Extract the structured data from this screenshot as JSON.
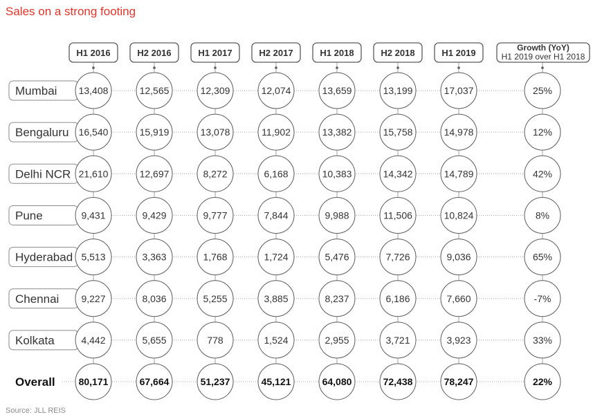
{
  "colors": {
    "title": "#e3342b",
    "text": "#333333",
    "stroke": "#5a5a5a",
    "stroke_light": "#8a8a8a",
    "line": "#a0a0a0",
    "muted": "#8c8c8c"
  },
  "chart_data": {
    "type": "table",
    "title": "Sales on a strong footing",
    "source": "Source: JLL REIS",
    "columns": [
      "H1 2016",
      "H2 2016",
      "H1 2017",
      "H2 2017",
      "H1 2018",
      "H2 2018",
      "H1 2019"
    ],
    "growth_column": {
      "label": "Growth (YoY)",
      "sublabel": "H1 2019 over H1 2018"
    },
    "rows": [
      {
        "label": "Mumbai",
        "values": [
          13408,
          12565,
          12309,
          12074,
          13659,
          13199,
          17037
        ],
        "growth_pct": 25
      },
      {
        "label": "Bengaluru",
        "values": [
          16540,
          15919,
          13078,
          11902,
          13382,
          15758,
          14978
        ],
        "growth_pct": 12
      },
      {
        "label": "Delhi NCR",
        "values": [
          21610,
          12697,
          8272,
          6168,
          10383,
          14342,
          14789
        ],
        "growth_pct": 42
      },
      {
        "label": "Pune",
        "values": [
          9431,
          9429,
          9777,
          7844,
          9988,
          11506,
          10824
        ],
        "growth_pct": 8
      },
      {
        "label": "Hyderabad",
        "values": [
          5513,
          3363,
          1768,
          1724,
          5476,
          7726,
          9036
        ],
        "growth_pct": 65
      },
      {
        "label": "Chennai",
        "values": [
          9227,
          8036,
          5255,
          3885,
          8237,
          6186,
          7660
        ],
        "growth_pct": -7
      },
      {
        "label": "Kolkata",
        "values": [
          4442,
          5655,
          778,
          1524,
          2955,
          3721,
          3923
        ],
        "growth_pct": 33
      },
      {
        "label": "Overall",
        "values": [
          80171,
          67664,
          51237,
          45121,
          64080,
          72438,
          78247
        ],
        "growth_pct": 22
      }
    ]
  }
}
